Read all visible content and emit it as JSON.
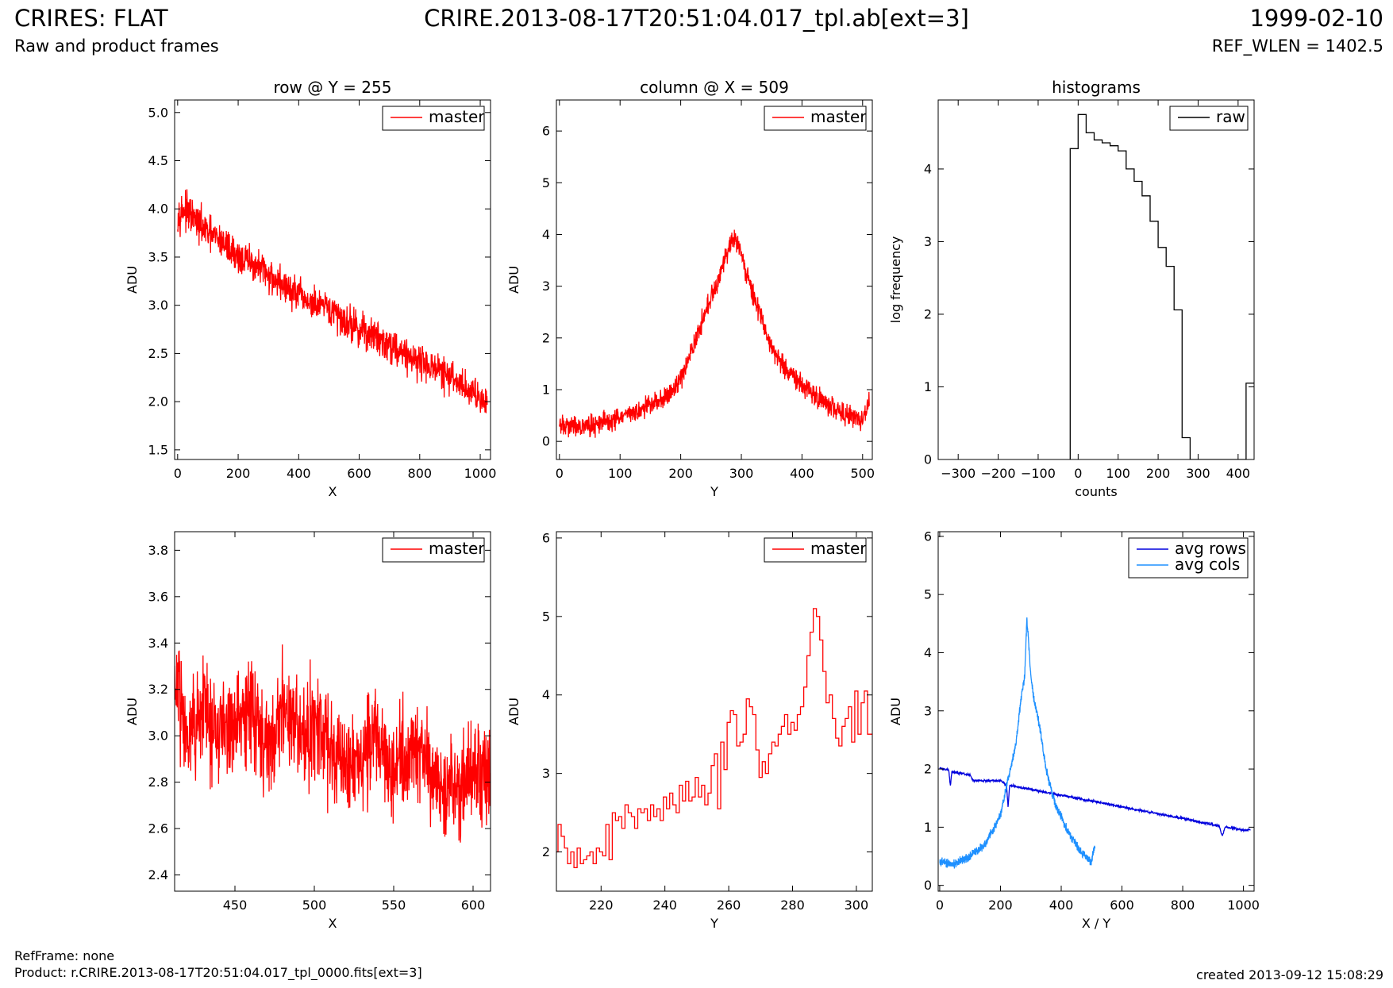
{
  "header": {
    "left_title": "CRIRES: FLAT",
    "left_subtitle": "Raw and product frames",
    "center_title": "CRIRE.2013-08-17T20:51:04.017_tpl.ab[ext=3]",
    "right_title": "1999-02-10",
    "right_subtitle": "REF_WLEN = 1402.5"
  },
  "footer": {
    "ref_frame": "RefFrame: none",
    "product": "Product: r.CRIRE.2013-08-17T20:51:04.017_tpl_0000.fits[ext=3]",
    "created": "created 2013-09-12 15:08:29"
  },
  "colors": {
    "master": "#ff0000",
    "raw": "#000000",
    "avg_rows": "#0000dd",
    "avg_cols": "#1e90ff"
  },
  "chart_data": [
    {
      "id": "row",
      "type": "line",
      "title": "row @ Y = 255",
      "xlabel": "X",
      "ylabel": "ADU",
      "xlim": [
        -10,
        1034
      ],
      "ylim": [
        1.4,
        5.13
      ],
      "xticks": [
        0,
        200,
        400,
        600,
        800,
        1000
      ],
      "yticks": [
        1.5,
        2.0,
        2.5,
        3.0,
        3.5,
        4.0,
        4.5,
        5.0
      ],
      "legend": "top-right",
      "series": [
        {
          "name": "master",
          "color": "#ff0000",
          "x": [
            0,
            20,
            50,
            100,
            150,
            200,
            250,
            300,
            350,
            400,
            450,
            500,
            550,
            600,
            650,
            700,
            750,
            800,
            850,
            900,
            950,
            1000,
            1023
          ],
          "y": [
            3.95,
            4.0,
            3.9,
            3.75,
            3.65,
            3.5,
            3.42,
            3.32,
            3.2,
            3.1,
            3.0,
            2.95,
            2.85,
            2.75,
            2.68,
            2.6,
            2.5,
            2.42,
            2.35,
            2.25,
            2.15,
            2.05,
            2.0
          ],
          "noise": 0.18
        }
      ]
    },
    {
      "id": "column",
      "type": "line",
      "title": "column @ X = 509",
      "xlabel": "Y",
      "ylabel": "ADU",
      "xlim": [
        -5,
        516
      ],
      "ylim": [
        -0.35,
        6.6
      ],
      "xticks": [
        0,
        100,
        200,
        300,
        400,
        500
      ],
      "yticks": [
        0,
        1,
        2,
        3,
        4,
        5,
        6
      ],
      "legend": "top-right",
      "series": [
        {
          "name": "master",
          "color": "#ff0000",
          "x": [
            0,
            25,
            50,
            100,
            150,
            180,
            200,
            220,
            240,
            260,
            270,
            280,
            287,
            295,
            310,
            330,
            350,
            380,
            420,
            460,
            500,
            511
          ],
          "y": [
            0.3,
            0.3,
            0.3,
            0.45,
            0.7,
            0.9,
            1.2,
            1.8,
            2.5,
            3.0,
            3.5,
            3.7,
            4.0,
            3.8,
            3.2,
            2.5,
            1.8,
            1.3,
            0.9,
            0.6,
            0.4,
            0.8
          ],
          "noise": 0.2
        }
      ]
    },
    {
      "id": "histograms",
      "type": "line",
      "title": "histograms",
      "xlabel": "counts",
      "ylabel": "log frequency",
      "xlim": [
        -350,
        440
      ],
      "ylim": [
        0,
        4.95
      ],
      "xticks": [
        -300,
        -200,
        -100,
        0,
        100,
        200,
        300,
        400
      ],
      "yticks": [
        0,
        1,
        2,
        3,
        4
      ],
      "legend": "top-right",
      "series": [
        {
          "name": "raw",
          "color": "#000000",
          "x": [
            -20,
            -20,
            0,
            0,
            20,
            20,
            40,
            40,
            60,
            60,
            80,
            80,
            100,
            100,
            120,
            120,
            140,
            140,
            160,
            160,
            180,
            180,
            200,
            200,
            220,
            220,
            240,
            240,
            260,
            260,
            280,
            280,
            420,
            420,
            440
          ],
          "y": [
            0,
            4.28,
            4.28,
            4.75,
            4.75,
            4.5,
            4.5,
            4.4,
            4.4,
            4.36,
            4.36,
            4.32,
            4.32,
            4.25,
            4.25,
            4.0,
            4.0,
            3.83,
            3.83,
            3.63,
            3.63,
            3.28,
            3.28,
            2.92,
            2.92,
            2.66,
            2.66,
            2.06,
            2.06,
            0.3,
            0.3,
            0,
            0,
            1.05,
            1.05
          ]
        }
      ]
    },
    {
      "id": "row-zoom",
      "type": "line",
      "xlabel": "X",
      "ylabel": "ADU",
      "xlim": [
        412,
        611
      ],
      "ylim": [
        2.33,
        3.88
      ],
      "xticks": [
        450,
        500,
        550,
        600
      ],
      "yticks": [
        2.4,
        2.6,
        2.8,
        3.0,
        3.2,
        3.4,
        3.6,
        3.8
      ],
      "legend": "top-right",
      "series": [
        {
          "name": "master",
          "color": "#ff0000",
          "x": [
            412,
            420,
            430,
            440,
            450,
            460,
            470,
            480,
            490,
            500,
            510,
            520,
            530,
            540,
            550,
            560,
            570,
            580,
            590,
            600,
            611
          ],
          "y": [
            3.25,
            3.05,
            3.1,
            3.0,
            3.05,
            3.15,
            2.95,
            3.1,
            3.0,
            3.05,
            2.95,
            2.9,
            2.9,
            3.0,
            2.85,
            2.95,
            2.9,
            2.75,
            2.8,
            2.85,
            2.85
          ],
          "noise": 0.22
        }
      ]
    },
    {
      "id": "column-zoom",
      "type": "line",
      "xlabel": "Y",
      "ylabel": "ADU",
      "xlim": [
        206,
        305
      ],
      "ylim": [
        1.5,
        6.08
      ],
      "xticks": [
        220,
        240,
        260,
        280,
        300
      ],
      "yticks": [
        2,
        3,
        4,
        5,
        6
      ],
      "legend": "top-right",
      "series": [
        {
          "name": "master",
          "color": "#ff0000",
          "x": [
            206,
            207,
            208,
            209,
            210,
            211,
            212,
            213,
            214,
            215,
            216,
            217,
            218,
            219,
            220,
            221,
            222,
            223,
            224,
            225,
            226,
            227,
            228,
            229,
            230,
            231,
            232,
            233,
            234,
            235,
            236,
            237,
            238,
            239,
            240,
            241,
            242,
            243,
            244,
            245,
            246,
            247,
            248,
            249,
            250,
            251,
            252,
            253,
            254,
            255,
            256,
            257,
            258,
            259,
            260,
            261,
            262,
            263,
            264,
            265,
            266,
            267,
            268,
            269,
            270,
            271,
            272,
            273,
            274,
            275,
            276,
            277,
            278,
            279,
            280,
            281,
            282,
            283,
            284,
            285,
            286,
            287,
            288,
            289,
            290,
            291,
            292,
            293,
            294,
            295,
            296,
            297,
            298,
            299,
            300,
            301,
            302,
            303,
            304,
            305
          ],
          "y": [
            2.0,
            2.35,
            2.2,
            2.05,
            1.85,
            2.0,
            1.8,
            2.05,
            1.85,
            1.9,
            1.95,
            2.0,
            1.85,
            2.05,
            2.0,
            1.95,
            2.35,
            1.9,
            2.5,
            2.4,
            2.45,
            2.3,
            2.6,
            2.5,
            2.45,
            2.3,
            2.55,
            2.5,
            2.55,
            2.4,
            2.6,
            2.45,
            2.55,
            2.4,
            2.7,
            2.55,
            2.75,
            2.6,
            2.5,
            2.85,
            2.65,
            2.9,
            2.65,
            2.7,
            2.95,
            2.7,
            2.85,
            2.6,
            2.75,
            3.1,
            3.25,
            2.55,
            3.4,
            3.05,
            3.65,
            3.8,
            3.75,
            3.35,
            3.4,
            3.5,
            3.95,
            3.85,
            3.75,
            3.3,
            2.95,
            3.15,
            3.0,
            3.25,
            3.4,
            3.35,
            3.5,
            3.6,
            3.75,
            3.5,
            3.65,
            3.55,
            3.75,
            3.85,
            4.1,
            4.5,
            4.8,
            5.1,
            5.0,
            4.7,
            4.3,
            3.9,
            4.0,
            3.7,
            3.45,
            3.35,
            3.6,
            3.7,
            3.85,
            3.4,
            4.05,
            3.5,
            3.9,
            4.05,
            3.5,
            3.5
          ]
        }
      ]
    },
    {
      "id": "averages",
      "type": "line",
      "xlabel": "X / Y",
      "ylabel": "ADU",
      "xlim": [
        -5,
        1035
      ],
      "ylim": [
        -0.1,
        6.08
      ],
      "xticks": [
        0,
        200,
        400,
        600,
        800,
        1000
      ],
      "yticks": [
        0,
        1,
        2,
        3,
        4,
        5,
        6
      ],
      "legend": "top-right",
      "series": [
        {
          "name": "avg rows",
          "color": "#0000dd",
          "x": [
            0,
            30,
            35,
            40,
            100,
            110,
            200,
            220,
            225,
            230,
            400,
            600,
            800,
            920,
            930,
            940,
            1000,
            1023
          ],
          "y": [
            2.02,
            1.98,
            1.7,
            1.95,
            1.9,
            1.8,
            1.8,
            1.72,
            1.35,
            1.72,
            1.55,
            1.35,
            1.15,
            1.02,
            0.85,
            1.0,
            0.95,
            0.95
          ],
          "noise": 0.02
        },
        {
          "name": "avg cols",
          "color": "#1e90ff",
          "x": [
            0,
            50,
            100,
            150,
            200,
            220,
            250,
            270,
            280,
            287,
            300,
            310,
            330,
            350,
            380,
            420,
            460,
            500,
            511
          ],
          "y": [
            0.4,
            0.37,
            0.5,
            0.7,
            1.2,
            1.7,
            2.4,
            3.3,
            3.6,
            4.6,
            3.6,
            3.2,
            2.7,
            2.0,
            1.4,
            0.95,
            0.6,
            0.4,
            0.7
          ],
          "noise": 0.07
        }
      ]
    }
  ]
}
